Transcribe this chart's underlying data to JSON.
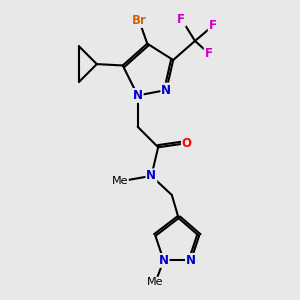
{
  "bg_color": "#e8e8e8",
  "bond_color": "#000000",
  "bond_width": 1.5,
  "atom_colors": {
    "N": "#0000cd",
    "O": "#ff0000",
    "Br": "#cc6600",
    "F": "#cc00cc",
    "C": "#000000"
  },
  "font_size": 8.5
}
